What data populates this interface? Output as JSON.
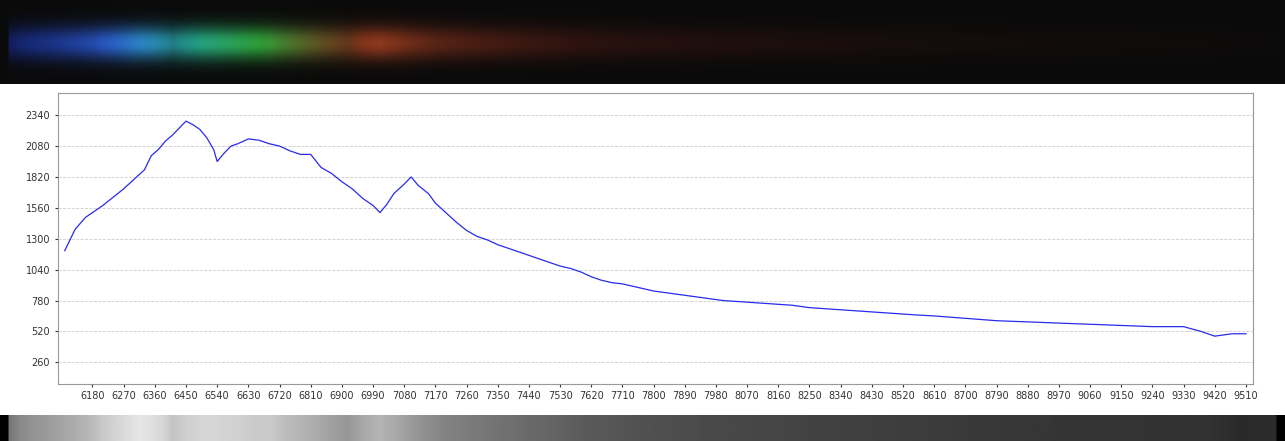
{
  "chart_data": {
    "type": "line",
    "color": "#2a2aee",
    "grid": true,
    "x": [
      6100,
      6130,
      6160,
      6180,
      6210,
      6240,
      6270,
      6300,
      6330,
      6350,
      6370,
      6390,
      6410,
      6430,
      6450,
      6470,
      6490,
      6510,
      6530,
      6540,
      6560,
      6580,
      6600,
      6630,
      6660,
      6690,
      6720,
      6750,
      6780,
      6810,
      6840,
      6870,
      6900,
      6930,
      6960,
      6990,
      7010,
      7030,
      7050,
      7080,
      7100,
      7120,
      7150,
      7170,
      7200,
      7230,
      7260,
      7290,
      7320,
      7350,
      7380,
      7410,
      7440,
      7470,
      7500,
      7530,
      7560,
      7590,
      7620,
      7650,
      7680,
      7710,
      7740,
      7770,
      7800,
      7850,
      7900,
      7950,
      8000,
      8050,
      8100,
      8150,
      8200,
      8250,
      8300,
      8350,
      8400,
      8450,
      8500,
      8550,
      8610,
      8700,
      8790,
      8880,
      8970,
      9060,
      9150,
      9240,
      9330,
      9380,
      9420,
      9470,
      9510
    ],
    "values": [
      1200,
      1380,
      1480,
      1520,
      1580,
      1650,
      1720,
      1800,
      1880,
      2000,
      2050,
      2120,
      2170,
      2230,
      2290,
      2260,
      2220,
      2150,
      2050,
      1950,
      2020,
      2080,
      2100,
      2140,
      2130,
      2100,
      2080,
      2040,
      2010,
      2010,
      1900,
      1850,
      1780,
      1720,
      1640,
      1580,
      1520,
      1590,
      1680,
      1760,
      1820,
      1750,
      1680,
      1600,
      1520,
      1440,
      1370,
      1320,
      1290,
      1250,
      1220,
      1190,
      1160,
      1130,
      1100,
      1070,
      1050,
      1020,
      980,
      950,
      930,
      920,
      900,
      880,
      860,
      840,
      820,
      800,
      780,
      770,
      760,
      750,
      740,
      720,
      710,
      700,
      690,
      680,
      670,
      660,
      650,
      630,
      610,
      600,
      590,
      580,
      570,
      560,
      560,
      520,
      480,
      500,
      500
    ],
    "xlim": [
      6080,
      9530
    ],
    "xticks": [
      6180,
      6270,
      6360,
      6450,
      6540,
      6630,
      6720,
      6810,
      6900,
      6990,
      7080,
      7170,
      7260,
      7350,
      7440,
      7530,
      7620,
      7710,
      7800,
      7890,
      7980,
      8070,
      8160,
      8250,
      8340,
      8430,
      8520,
      8610,
      8700,
      8790,
      8880,
      8970,
      9060,
      9150,
      9240,
      9330,
      9420,
      9510
    ],
    "ylim": [
      80,
      2530
    ],
    "yticks": [
      260,
      520,
      780,
      1040,
      1300,
      1560,
      1820,
      2080,
      2340
    ]
  }
}
